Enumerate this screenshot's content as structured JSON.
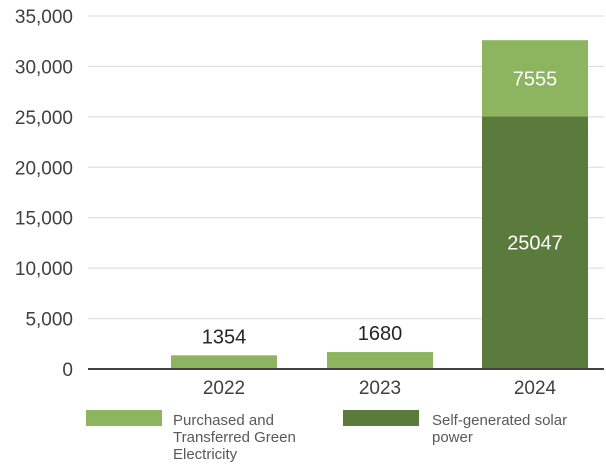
{
  "chart_data": {
    "type": "bar",
    "stacked": true,
    "categories": [
      "2022",
      "2023",
      "2024"
    ],
    "series": [
      {
        "name": "Self-generated solar power",
        "legend_lines": [
          "Self-generated solar",
          "power"
        ],
        "color": "#5b7b3c",
        "values": [
          0,
          0,
          25047
        ],
        "labels": [
          "",
          "",
          "25047"
        ]
      },
      {
        "name": "Purchased and Transferred Green Electricity",
        "legend_lines": [
          "Purchased and",
          "Transferred Green",
          "Electricity"
        ],
        "color": "#8db560",
        "values": [
          1354,
          1680,
          7555
        ],
        "labels": [
          "1354",
          "1680",
          "7555"
        ]
      }
    ],
    "legend_order": [
      1,
      0
    ],
    "yticks": [
      "0",
      "5,000",
      "10,000",
      "15,000",
      "20,000",
      "25,000",
      "30,000",
      "35,000"
    ],
    "ylim": [
      0,
      35000
    ],
    "grid": true,
    "legend_position": "bottom",
    "title": "",
    "xlabel": "",
    "ylabel": ""
  }
}
